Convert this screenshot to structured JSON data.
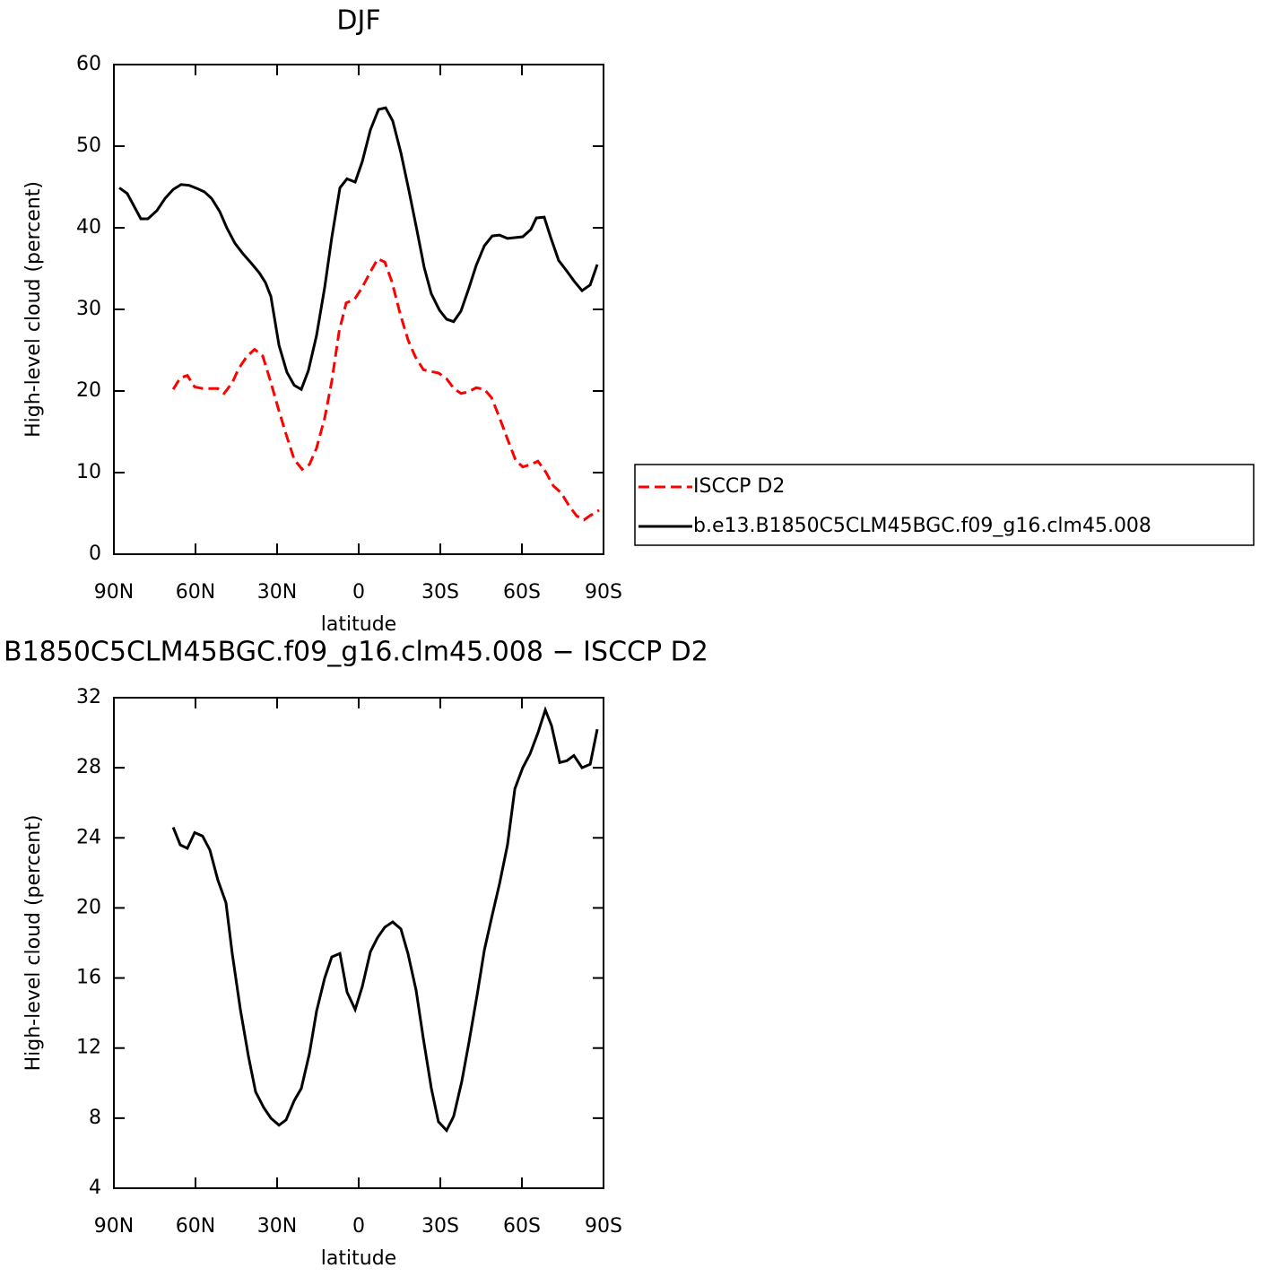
{
  "chart_data": [
    {
      "type": "line",
      "title": "DJF",
      "xlabel": "latitude",
      "ylabel": "High-level cloud (percent)",
      "xlim": [
        90,
        -90
      ],
      "xticks": [
        {
          "value": 90,
          "label": "90N"
        },
        {
          "value": 60,
          "label": "60N"
        },
        {
          "value": 30,
          "label": "30N"
        },
        0,
        {
          "value": -30,
          "label": "30S"
        },
        {
          "value": -60,
          "label": "60S"
        },
        {
          "value": -90,
          "label": "90S"
        }
      ],
      "ylim": [
        0,
        60
      ],
      "yticks": [
        0,
        10,
        20,
        30,
        40,
        50,
        60
      ],
      "series": [
        {
          "name": "ISCCP D2",
          "color": "#ff0000",
          "dash": true,
          "x": [
            68.2,
            65.6,
            63.0,
            60.3,
            57.4,
            54.1,
            51.8,
            49.5,
            46.5,
            44.2,
            41.2,
            38.3,
            35.3,
            32.6,
            29.7,
            26.7,
            23.7,
            20.8,
            18.1,
            15.5,
            12.5,
            9.9,
            7.2,
            4.6,
            1.6,
            -1.3,
            -4.3,
            -7.0,
            -9.6,
            -12.2,
            -15.2,
            -18.2,
            -20.8,
            -23.8,
            -26.4,
            -29.4,
            -32.3,
            -35.0,
            -37.6,
            -40.3,
            -43.2,
            -46.2,
            -48.8,
            -51.8,
            -54.7,
            -57.7,
            -60.3,
            -63.3,
            -65.9,
            -68.9,
            -71.5,
            -74.5,
            -77.2,
            -80.1,
            -82.8,
            -85.4,
            -88.4
          ],
          "values": [
            20.2,
            21.6,
            21.9,
            20.5,
            20.3,
            20.3,
            20.3,
            19.7,
            21.0,
            22.7,
            24.2,
            25.1,
            24.3,
            21.4,
            18.0,
            14.7,
            11.6,
            10.4,
            11.0,
            13.0,
            16.7,
            21.2,
            27.3,
            30.8,
            31.2,
            32.7,
            34.6,
            36.2,
            35.8,
            33.4,
            29.5,
            26.2,
            24.2,
            22.6,
            22.4,
            22.2,
            21.5,
            20.3,
            19.7,
            19.9,
            20.4,
            20.2,
            19.2,
            16.7,
            14.1,
            11.5,
            10.7,
            11.0,
            11.4,
            10.0,
            8.4,
            7.5,
            6.0,
            4.7,
            4.2,
            4.8,
            5.4
          ]
        },
        {
          "name": "b.e13.B1850C5CLM45BGC.f09_g16.clm45.008",
          "color": "#000000",
          "dash": false,
          "x": [
            88.0,
            85.1,
            80.1,
            77.5,
            74.2,
            71.2,
            68.2,
            65.3,
            62.3,
            59.3,
            56.7,
            54.1,
            51.1,
            48.5,
            45.5,
            42.5,
            39.6,
            36.6,
            34.3,
            32.3,
            29.3,
            26.4,
            23.7,
            21.1,
            18.5,
            15.5,
            12.5,
            9.9,
            6.9,
            4.3,
            1.3,
            -1.3,
            -4.3,
            -7.3,
            -9.9,
            -12.5,
            -15.5,
            -18.5,
            -21.4,
            -24.1,
            -26.7,
            -29.7,
            -32.3,
            -34.9,
            -37.6,
            -40.5,
            -43.2,
            -46.2,
            -49.1,
            -51.8,
            -54.7,
            -57.7,
            -60.3,
            -63.3,
            -65.3,
            -68.2,
            -70.5,
            -73.5,
            -76.5,
            -79.1,
            -82.1,
            -85.1,
            -87.7
          ],
          "values": [
            44.9,
            44.2,
            41.1,
            41.1,
            42.1,
            43.6,
            44.7,
            45.3,
            45.2,
            44.8,
            44.4,
            43.6,
            42.0,
            40.0,
            38.1,
            36.8,
            35.7,
            34.5,
            33.3,
            31.6,
            25.6,
            22.3,
            20.7,
            20.2,
            22.5,
            26.8,
            32.7,
            38.8,
            44.9,
            46.0,
            45.6,
            48.1,
            52.0,
            54.5,
            54.7,
            53.1,
            49.2,
            44.5,
            39.7,
            35.1,
            31.9,
            29.9,
            28.8,
            28.5,
            29.8,
            32.6,
            35.4,
            37.8,
            39.0,
            39.1,
            38.7,
            38.8,
            38.9,
            39.8,
            41.2,
            41.3,
            38.9,
            36.0,
            34.7,
            33.5,
            32.3,
            33.0,
            35.5
          ]
        }
      ]
    },
    {
      "type": "line",
      "title": "B1850C5CLM45BGC.f09_g16.clm45.008 − ISCCP D2",
      "xlabel": "latitude",
      "ylabel": "High-level cloud (percent)",
      "xlim": [
        90,
        -90
      ],
      "xticks": [
        {
          "value": 90,
          "label": "90N"
        },
        {
          "value": 60,
          "label": "60N"
        },
        {
          "value": 30,
          "label": "30N"
        },
        0,
        {
          "value": -30,
          "label": "30S"
        },
        {
          "value": -60,
          "label": "60S"
        },
        {
          "value": -90,
          "label": "90S"
        }
      ],
      "ylim": [
        4,
        32
      ],
      "yticks": [
        4,
        8,
        12,
        16,
        20,
        24,
        28,
        32
      ],
      "series": [
        {
          "color": "#000000",
          "dash": false,
          "x": [
            68.2,
            65.6,
            63.0,
            60.3,
            57.4,
            54.7,
            51.8,
            48.8,
            46.5,
            43.5,
            40.5,
            37.9,
            34.9,
            32.3,
            29.3,
            26.7,
            23.7,
            21.1,
            18.1,
            15.5,
            12.5,
            9.9,
            6.9,
            4.3,
            1.3,
            -1.3,
            -4.3,
            -6.9,
            -9.6,
            -12.5,
            -15.5,
            -18.1,
            -21.1,
            -23.7,
            -26.7,
            -29.3,
            -32.3,
            -34.9,
            -37.9,
            -40.5,
            -43.5,
            -46.2,
            -49.1,
            -51.8,
            -54.7,
            -57.4,
            -60.3,
            -63.0,
            -65.9,
            -68.6,
            -70.9,
            -73.9,
            -76.5,
            -79.1,
            -82.1,
            -85.1,
            -87.7
          ],
          "values": [
            24.6,
            23.6,
            23.4,
            24.3,
            24.1,
            23.3,
            21.6,
            20.3,
            17.4,
            14.2,
            11.5,
            9.5,
            8.6,
            8.0,
            7.6,
            7.9,
            9.0,
            9.7,
            11.7,
            14.1,
            16.0,
            17.2,
            17.4,
            15.2,
            14.2,
            15.5,
            17.5,
            18.3,
            18.9,
            19.2,
            18.8,
            17.4,
            15.3,
            12.6,
            9.7,
            7.8,
            7.3,
            8.1,
            10.1,
            12.3,
            15.0,
            17.6,
            19.6,
            21.4,
            23.6,
            26.8,
            28.0,
            28.8,
            30.0,
            31.3,
            30.4,
            28.3,
            28.4,
            28.7,
            28.0,
            28.2,
            30.2
          ]
        }
      ]
    }
  ]
}
